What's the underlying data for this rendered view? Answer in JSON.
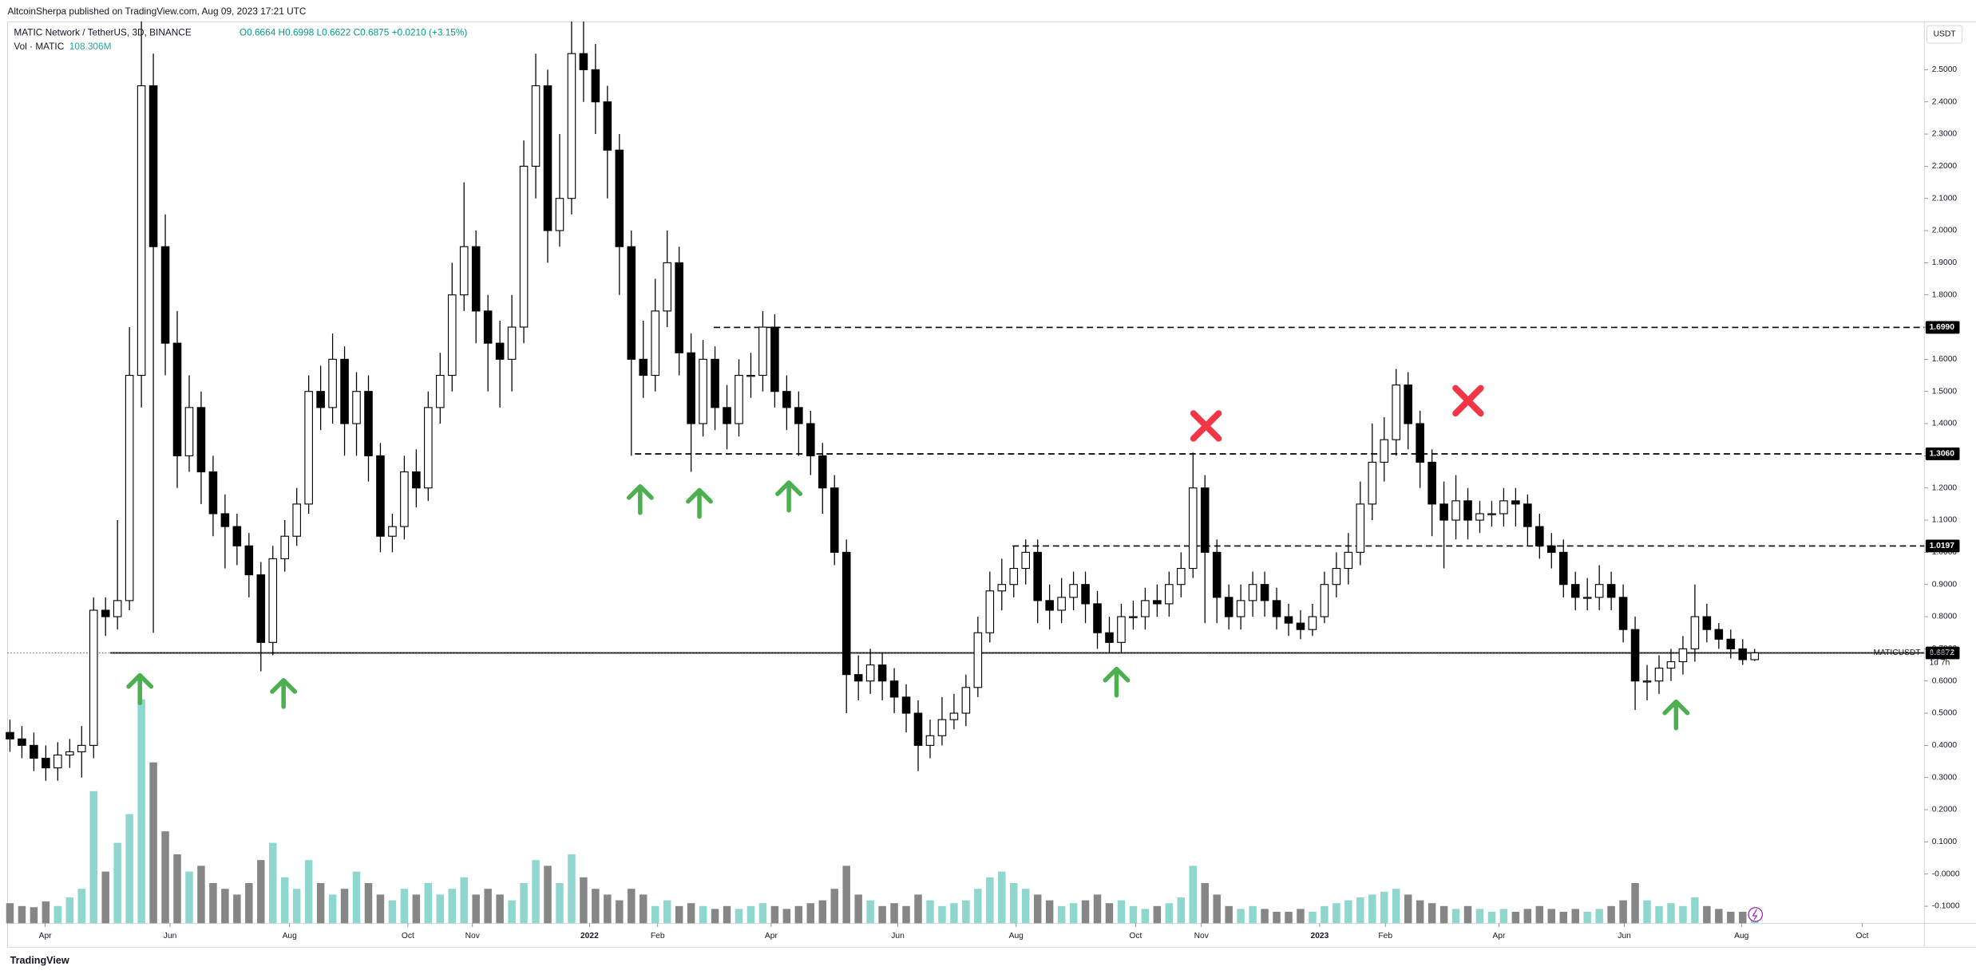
{
  "chart_data": {
    "type": "candlestick",
    "published": "AltcoinSherpa published on TradingView.com, Aug 09, 2023 17:21 UTC",
    "symbol": "MATIC Network / TetherUS, 3D, BINANCE",
    "ohlc_text": "O0.6664 H0.6998 L0.6622 C0.6875 +0.0210 (+3.15%)",
    "volume_name": "Vol · MATIC",
    "volume_label": "108.306M",
    "currency": "USDT",
    "ticker": "MATICUSDT",
    "countdown": "1d 7h",
    "footer": "TradingView",
    "up_color": "#ffffff",
    "down_color": "#000000",
    "volume_up_color": "#8fd6ce",
    "volume_down_color": "#868686",
    "open": [
      0.44,
      0.42,
      0.4,
      0.36,
      0.33,
      0.37,
      0.38,
      0.4,
      0.82,
      0.8,
      0.85,
      1.55,
      2.45,
      1.95,
      1.65,
      1.3,
      1.45,
      1.25,
      1.12,
      1.08,
      1.02,
      0.93,
      0.72,
      0.98,
      1.05,
      1.15,
      1.5,
      1.45,
      1.6,
      1.4,
      1.5,
      1.3,
      1.05,
      1.08,
      1.25,
      1.2,
      1.45,
      1.55,
      1.8,
      1.95,
      1.75,
      1.65,
      1.6,
      1.7,
      2.2,
      2.45,
      2.0,
      2.1,
      2.55,
      2.5,
      2.4,
      2.25,
      1.95,
      1.6,
      1.55,
      1.75,
      1.9,
      1.62,
      1.4,
      1.6,
      1.45,
      1.4,
      1.55,
      1.55,
      1.7,
      1.5,
      1.45,
      1.4,
      1.3,
      1.2,
      1.0,
      0.62,
      0.6,
      0.65,
      0.6,
      0.55,
      0.5,
      0.4,
      0.43,
      0.48,
      0.5,
      0.58,
      0.75,
      0.88,
      0.9,
      0.95,
      1.0,
      0.85,
      0.82,
      0.86,
      0.9,
      0.84,
      0.75,
      0.72,
      0.8,
      0.8,
      0.85,
      0.84,
      0.9,
      0.95,
      1.2,
      1.0,
      0.86,
      0.8,
      0.85,
      0.9,
      0.85,
      0.8,
      0.78,
      0.76,
      0.8,
      0.9,
      0.95,
      1.0,
      1.15,
      1.28,
      1.35,
      1.52,
      1.4,
      1.28,
      1.15,
      1.1,
      1.16,
      1.1,
      1.12,
      1.12,
      1.16,
      1.15,
      1.08,
      1.02,
      1.0,
      0.9,
      0.86,
      0.86,
      0.9,
      0.86,
      0.76,
      0.6,
      0.6,
      0.64,
      0.66,
      0.7,
      0.8,
      0.76,
      0.73,
      0.7,
      0.6664
    ],
    "high": [
      0.48,
      0.46,
      0.44,
      0.4,
      0.41,
      0.42,
      0.46,
      0.86,
      0.86,
      1.1,
      1.7,
      2.65,
      2.55,
      2.05,
      1.75,
      1.55,
      1.5,
      1.3,
      1.18,
      1.12,
      1.06,
      0.97,
      1.02,
      1.1,
      1.2,
      1.55,
      1.58,
      1.68,
      1.64,
      1.56,
      1.55,
      1.34,
      1.12,
      1.3,
      1.32,
      1.5,
      1.62,
      1.9,
      2.15,
      2.0,
      1.8,
      1.72,
      1.8,
      2.28,
      2.55,
      2.5,
      2.3,
      2.65,
      2.65,
      2.58,
      2.45,
      2.3,
      2.0,
      1.72,
      1.85,
      2.0,
      1.95,
      1.68,
      1.66,
      1.64,
      1.52,
      1.6,
      1.62,
      1.75,
      1.74,
      1.55,
      1.5,
      1.44,
      1.34,
      1.24,
      1.04,
      0.68,
      0.7,
      0.69,
      0.64,
      0.59,
      0.54,
      0.48,
      0.55,
      0.56,
      0.62,
      0.8,
      0.94,
      0.98,
      1.02,
      1.04,
      1.04,
      0.9,
      0.92,
      0.94,
      0.94,
      0.88,
      0.8,
      0.84,
      0.85,
      0.89,
      0.9,
      0.94,
      1.0,
      1.31,
      1.24,
      1.04,
      0.9,
      0.9,
      0.94,
      0.94,
      0.89,
      0.84,
      0.82,
      0.84,
      0.94,
      1.0,
      1.06,
      1.22,
      1.4,
      1.42,
      1.57,
      1.56,
      1.44,
      1.32,
      1.22,
      1.24,
      1.2,
      1.16,
      1.16,
      1.2,
      1.2,
      1.18,
      1.12,
      1.06,
      1.04,
      0.94,
      0.92,
      0.96,
      0.94,
      0.9,
      0.8,
      0.65,
      0.68,
      0.7,
      0.74,
      0.9,
      0.84,
      0.78,
      0.76,
      0.73,
      0.6998
    ],
    "low": [
      0.38,
      0.36,
      0.32,
      0.29,
      0.29,
      0.33,
      0.3,
      0.36,
      0.74,
      0.76,
      0.82,
      1.45,
      0.75,
      1.55,
      1.2,
      1.25,
      1.15,
      1.05,
      0.95,
      0.96,
      0.86,
      0.63,
      0.68,
      0.94,
      1.02,
      1.12,
      1.38,
      1.4,
      1.3,
      1.3,
      1.22,
      1.0,
      1.0,
      1.04,
      1.14,
      1.16,
      1.4,
      1.5,
      1.75,
      1.65,
      1.5,
      1.45,
      1.5,
      1.65,
      2.1,
      1.9,
      1.95,
      2.05,
      2.4,
      2.3,
      2.1,
      1.8,
      1.3,
      1.48,
      1.5,
      1.7,
      1.55,
      1.25,
      1.36,
      1.38,
      1.32,
      1.36,
      1.48,
      1.5,
      1.45,
      1.38,
      1.3,
      1.24,
      1.12,
      0.96,
      0.5,
      0.54,
      0.56,
      0.54,
      0.5,
      0.44,
      0.32,
      0.36,
      0.4,
      0.45,
      0.46,
      0.55,
      0.72,
      0.82,
      0.86,
      0.9,
      0.78,
      0.76,
      0.78,
      0.82,
      0.78,
      0.7,
      0.69,
      0.69,
      0.76,
      0.76,
      0.8,
      0.8,
      0.86,
      0.92,
      0.78,
      0.78,
      0.76,
      0.76,
      0.8,
      0.8,
      0.76,
      0.74,
      0.73,
      0.74,
      0.78,
      0.86,
      0.9,
      0.96,
      1.1,
      1.22,
      1.3,
      1.32,
      1.2,
      1.05,
      0.95,
      1.04,
      1.04,
      1.06,
      1.08,
      1.08,
      1.08,
      1.02,
      0.98,
      0.95,
      0.86,
      0.82,
      0.82,
      0.82,
      0.82,
      0.72,
      0.51,
      0.54,
      0.56,
      0.6,
      0.62,
      0.66,
      0.72,
      0.7,
      0.67,
      0.65,
      0.6622
    ],
    "close": [
      0.42,
      0.4,
      0.36,
      0.33,
      0.37,
      0.38,
      0.4,
      0.82,
      0.8,
      0.85,
      1.55,
      2.45,
      1.95,
      1.65,
      1.3,
      1.45,
      1.25,
      1.12,
      1.08,
      1.02,
      0.93,
      0.72,
      0.98,
      1.05,
      1.15,
      1.5,
      1.45,
      1.6,
      1.4,
      1.5,
      1.3,
      1.05,
      1.08,
      1.25,
      1.2,
      1.45,
      1.55,
      1.8,
      1.95,
      1.75,
      1.65,
      1.6,
      1.7,
      2.2,
      2.45,
      2.0,
      2.1,
      2.55,
      2.5,
      2.4,
      2.25,
      1.95,
      1.6,
      1.55,
      1.75,
      1.9,
      1.62,
      1.4,
      1.6,
      1.45,
      1.4,
      1.55,
      1.55,
      1.7,
      1.5,
      1.45,
      1.4,
      1.3,
      1.2,
      1.0,
      0.62,
      0.6,
      0.65,
      0.6,
      0.55,
      0.5,
      0.4,
      0.43,
      0.48,
      0.5,
      0.58,
      0.75,
      0.88,
      0.9,
      0.95,
      1.0,
      0.85,
      0.82,
      0.86,
      0.9,
      0.84,
      0.75,
      0.72,
      0.8,
      0.8,
      0.85,
      0.84,
      0.9,
      0.95,
      1.2,
      1.0,
      0.86,
      0.8,
      0.85,
      0.9,
      0.85,
      0.8,
      0.78,
      0.76,
      0.8,
      0.9,
      0.95,
      1.0,
      1.15,
      1.28,
      1.35,
      1.52,
      1.4,
      1.28,
      1.15,
      1.1,
      1.16,
      1.1,
      1.12,
      1.12,
      1.16,
      1.15,
      1.08,
      1.02,
      1.0,
      0.9,
      0.86,
      0.86,
      0.9,
      0.86,
      0.76,
      0.6,
      0.6,
      0.64,
      0.66,
      0.7,
      0.8,
      0.76,
      0.73,
      0.7,
      0.6664,
      0.6875
    ],
    "volume": [
      350,
      300,
      280,
      380,
      300,
      450,
      600,
      2300,
      900,
      1400,
      1900,
      3900,
      2800,
      1600,
      1200,
      900,
      1000,
      700,
      600,
      500,
      700,
      1100,
      1400,
      800,
      600,
      1100,
      700,
      500,
      600,
      900,
      700,
      500,
      400,
      600,
      500,
      700,
      500,
      600,
      800,
      500,
      600,
      500,
      400,
      700,
      1100,
      1000,
      700,
      1200,
      800,
      600,
      500,
      400,
      600,
      500,
      300,
      400,
      300,
      350,
      300,
      250,
      300,
      250,
      300,
      350,
      300,
      250,
      300,
      350,
      400,
      600,
      1000,
      500,
      400,
      300,
      350,
      300,
      500,
      400,
      300,
      350,
      400,
      600,
      800,
      900,
      700,
      600,
      500,
      400,
      300,
      350,
      400,
      500,
      350,
      400,
      300,
      250,
      300,
      350,
      450,
      1000,
      700,
      500,
      300,
      250,
      300,
      250,
      200,
      200,
      250,
      200,
      300,
      350,
      400,
      450,
      500,
      550,
      600,
      500,
      400,
      350,
      300,
      250,
      300,
      250,
      200,
      250,
      200,
      250,
      300,
      250,
      200,
      250,
      200,
      250,
      300,
      400,
      700,
      400,
      300,
      350,
      300,
      450,
      300,
      250,
      200,
      200,
      108.306
    ],
    "levels": [
      {
        "value": 1.699,
        "label": "1.6990",
        "start": 58.9,
        "style": "dashed"
      },
      {
        "value": 1.306,
        "label": "1.3060",
        "start": 52.3,
        "style": "dashed"
      },
      {
        "value": 1.0197,
        "label": "1.0197",
        "start": 83.9,
        "style": "dashed"
      },
      {
        "value": 0.6872,
        "label": "0.6872",
        "start": 8.4,
        "style": "solid"
      }
    ],
    "xlim": [
      -0.2,
      160.2
    ],
    "ylim": [
      -0.153,
      2.649
    ],
    "xticks": [
      {
        "value": 2.95,
        "label": "Apr"
      },
      {
        "value": 13.4,
        "label": "Jun"
      },
      {
        "value": 23.4,
        "label": "Aug"
      },
      {
        "value": 33.3,
        "label": "Oct"
      },
      {
        "value": 38.7,
        "label": "Nov"
      },
      {
        "value": 48.5,
        "label": "2022"
      },
      {
        "value": 54.2,
        "label": "Feb"
      },
      {
        "value": 63.7,
        "label": "Apr"
      },
      {
        "value": 74.3,
        "label": "Jun"
      },
      {
        "value": 84.2,
        "label": "Aug"
      },
      {
        "value": 94.2,
        "label": "Oct"
      },
      {
        "value": 99.7,
        "label": "Nov"
      },
      {
        "value": 109.6,
        "label": "2023"
      },
      {
        "value": 115.1,
        "label": "Feb"
      },
      {
        "value": 124.6,
        "label": "Apr"
      },
      {
        "value": 135.1,
        "label": "Jun"
      },
      {
        "value": 144.9,
        "label": "Aug"
      },
      {
        "value": 155.0,
        "label": "Oct"
      }
    ],
    "yticks": [
      {
        "value": 2.5,
        "label": "2.5000"
      },
      {
        "value": 2.4,
        "label": "2.4000"
      },
      {
        "value": 2.3,
        "label": "2.3000"
      },
      {
        "value": 2.2,
        "label": "2.2000"
      },
      {
        "value": 2.1,
        "label": "2.1000"
      },
      {
        "value": 2.0,
        "label": "2.0000"
      },
      {
        "value": 1.9,
        "label": "1.9000"
      },
      {
        "value": 1.8,
        "label": "1.8000"
      },
      {
        "value": 1.7,
        "label": "1.7000"
      },
      {
        "value": 1.6,
        "label": "1.6000"
      },
      {
        "value": 1.5,
        "label": "1.5000"
      },
      {
        "value": 1.4,
        "label": "1.4000"
      },
      {
        "value": 1.3,
        "label": "1.3000"
      },
      {
        "value": 1.2,
        "label": "1.2000"
      },
      {
        "value": 1.1,
        "label": "1.1000"
      },
      {
        "value": 1.0,
        "label": "1.0000"
      },
      {
        "value": 0.9,
        "label": "0.9000"
      },
      {
        "value": 0.8,
        "label": "0.8000"
      },
      {
        "value": 0.7,
        "label": "0.7000"
      },
      {
        "value": 0.6,
        "label": "0.6000"
      },
      {
        "value": 0.5,
        "label": "0.5000"
      },
      {
        "value": 0.4,
        "label": "0.4000"
      },
      {
        "value": 0.3,
        "label": "0.3000"
      },
      {
        "value": 0.2,
        "label": "0.2000"
      },
      {
        "value": 0.1,
        "label": "0.1000"
      },
      {
        "value": 0,
        "label": "-0.0000"
      },
      {
        "value": -0.1,
        "label": "-0.1000"
      }
    ]
  }
}
